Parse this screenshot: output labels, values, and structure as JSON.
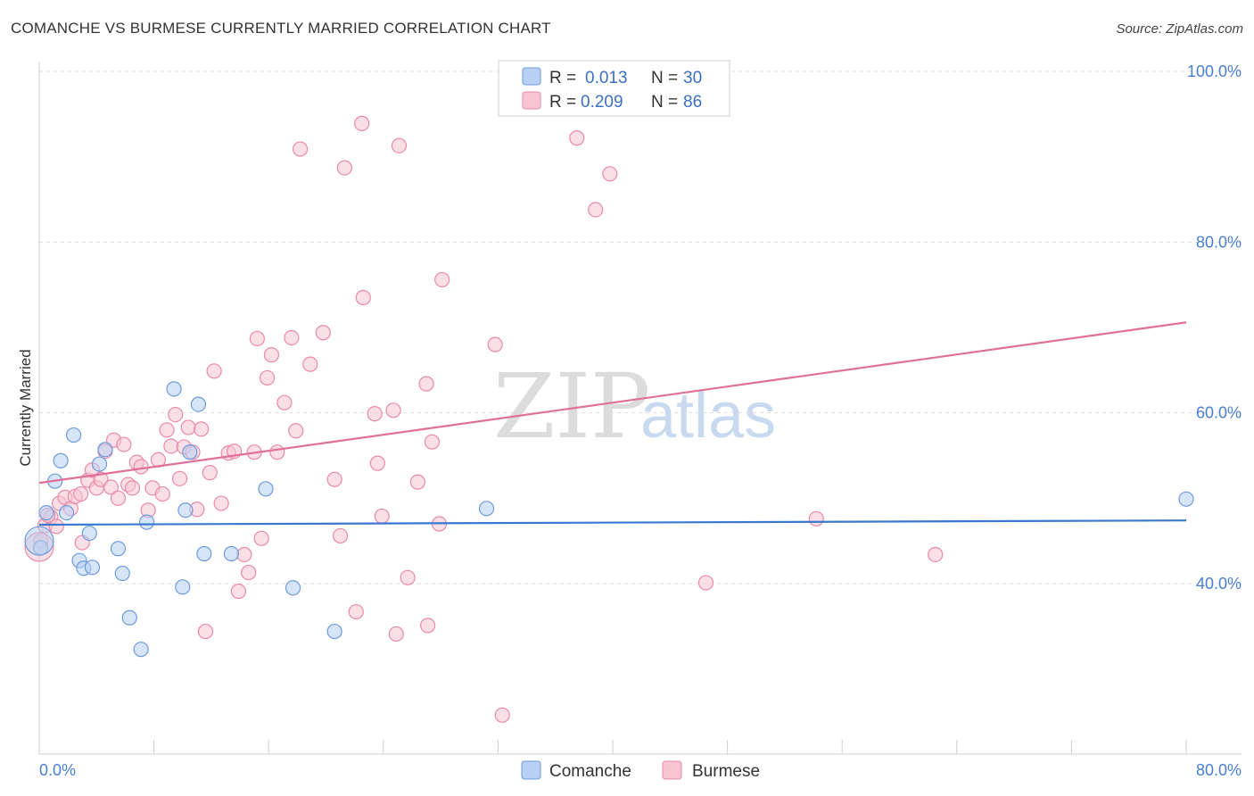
{
  "title": "COMANCHE VS BURMESE CURRENTLY MARRIED CORRELATION CHART",
  "source": "Source: ZipAtlas.com",
  "watermark": {
    "zip": "ZIP",
    "atlas": "atlas"
  },
  "legend": {
    "r_label": "R =",
    "n_label": "N =",
    "rows": [
      {
        "r": "0.013",
        "n": "30"
      },
      {
        "r": "0.209",
        "n": "86"
      }
    ]
  },
  "bottom_legend": [
    "Comanche",
    "Burmese"
  ],
  "chart_data": {
    "type": "scatter",
    "title": "COMANCHE VS BURMESE CURRENTLY MARRIED CORRELATION CHART",
    "xlabel": "",
    "ylabel": "Currently Married",
    "xlim": [
      0,
      80
    ],
    "ylim": [
      20,
      102
    ],
    "x_tick_labels": [
      "0.0%",
      "80.0%"
    ],
    "y_ticks": [
      40,
      60,
      80,
      100
    ],
    "y_tick_labels": [
      "40.0%",
      "60.0%",
      "80.0%",
      "100.0%"
    ],
    "grid": true,
    "legend_position": "top-center",
    "colors": {
      "comanche_fill": "#b7d0f3",
      "comanche_stroke": "#6f9bdc",
      "comanche_line": "#3a78d0",
      "burmese_fill": "#f8c4d4",
      "burmese_stroke": "#e88aa8",
      "burmese_line": "#e0709a"
    },
    "series": [
      {
        "name": "Comanche",
        "trend": {
          "x": [
            0,
            80
          ],
          "y": [
            46.9,
            47.4
          ]
        },
        "points": [
          [
            0.1,
            44.2
          ],
          [
            0.5,
            48.3
          ],
          [
            1.1,
            52.0
          ],
          [
            1.5,
            54.4
          ],
          [
            1.9,
            48.3
          ],
          [
            2.4,
            57.4
          ],
          [
            2.8,
            42.7
          ],
          [
            3.1,
            41.8
          ],
          [
            3.5,
            45.9
          ],
          [
            3.7,
            41.9
          ],
          [
            4.2,
            54.0
          ],
          [
            4.6,
            55.7
          ],
          [
            5.5,
            44.1
          ],
          [
            5.8,
            41.2
          ],
          [
            6.3,
            36.0
          ],
          [
            7.1,
            32.3
          ],
          [
            7.5,
            47.2
          ],
          [
            9.4,
            62.8
          ],
          [
            10.0,
            39.6
          ],
          [
            10.2,
            48.6
          ],
          [
            10.5,
            55.4
          ],
          [
            11.1,
            61.0
          ],
          [
            11.5,
            43.5
          ],
          [
            13.4,
            43.5
          ],
          [
            15.8,
            51.1
          ],
          [
            17.7,
            39.5
          ],
          [
            20.6,
            34.4
          ],
          [
            31.2,
            48.8
          ],
          [
            80.0,
            49.9
          ],
          [
            0.0,
            45.0
          ]
        ]
      },
      {
        "name": "Burmese",
        "trend": {
          "x": [
            0,
            80
          ],
          "y": [
            51.8,
            70.6
          ]
        },
        "points": [
          [
            0.1,
            45.0
          ],
          [
            0.4,
            46.8
          ],
          [
            0.8,
            47.8
          ],
          [
            1.2,
            46.7
          ],
          [
            1.4,
            49.4
          ],
          [
            1.8,
            50.1
          ],
          [
            2.2,
            48.8
          ],
          [
            2.5,
            50.2
          ],
          [
            2.9,
            50.5
          ],
          [
            3.0,
            44.8
          ],
          [
            3.4,
            52.1
          ],
          [
            3.7,
            53.3
          ],
          [
            4.0,
            51.2
          ],
          [
            4.3,
            52.2
          ],
          [
            4.6,
            55.5
          ],
          [
            5.0,
            51.3
          ],
          [
            5.2,
            56.8
          ],
          [
            5.5,
            50.0
          ],
          [
            5.9,
            56.3
          ],
          [
            6.2,
            51.6
          ],
          [
            6.5,
            51.2
          ],
          [
            6.8,
            54.2
          ],
          [
            7.1,
            53.7
          ],
          [
            7.6,
            48.6
          ],
          [
            7.9,
            51.2
          ],
          [
            8.3,
            54.5
          ],
          [
            8.6,
            50.5
          ],
          [
            8.9,
            58.0
          ],
          [
            9.2,
            56.1
          ],
          [
            9.5,
            59.8
          ],
          [
            9.8,
            52.3
          ],
          [
            10.1,
            56.0
          ],
          [
            10.4,
            58.3
          ],
          [
            10.7,
            55.4
          ],
          [
            11.0,
            48.7
          ],
          [
            11.3,
            58.1
          ],
          [
            11.6,
            34.4
          ],
          [
            11.9,
            53.0
          ],
          [
            12.2,
            64.9
          ],
          [
            12.7,
            49.4
          ],
          [
            13.2,
            55.3
          ],
          [
            13.6,
            55.5
          ],
          [
            13.9,
            39.1
          ],
          [
            14.3,
            43.4
          ],
          [
            14.6,
            41.3
          ],
          [
            15.0,
            55.4
          ],
          [
            15.2,
            68.7
          ],
          [
            15.5,
            45.3
          ],
          [
            15.9,
            64.1
          ],
          [
            16.2,
            66.8
          ],
          [
            16.6,
            55.4
          ],
          [
            17.1,
            61.2
          ],
          [
            17.6,
            68.8
          ],
          [
            17.9,
            57.9
          ],
          [
            18.2,
            90.9
          ],
          [
            18.9,
            65.7
          ],
          [
            19.8,
            69.4
          ],
          [
            20.6,
            52.2
          ],
          [
            21.0,
            45.6
          ],
          [
            21.3,
            88.7
          ],
          [
            22.1,
            36.7
          ],
          [
            22.5,
            93.9
          ],
          [
            22.6,
            73.5
          ],
          [
            23.4,
            59.9
          ],
          [
            23.6,
            54.1
          ],
          [
            23.9,
            47.9
          ],
          [
            24.7,
            60.3
          ],
          [
            24.9,
            34.1
          ],
          [
            25.1,
            91.3
          ],
          [
            25.7,
            40.7
          ],
          [
            26.4,
            51.9
          ],
          [
            27.0,
            63.4
          ],
          [
            27.1,
            35.1
          ],
          [
            27.4,
            56.6
          ],
          [
            27.9,
            47.0
          ],
          [
            28.1,
            75.6
          ],
          [
            31.8,
            68.0
          ],
          [
            32.3,
            24.6
          ],
          [
            37.5,
            92.2
          ],
          [
            38.8,
            83.8
          ],
          [
            39.8,
            88.0
          ],
          [
            46.5,
            40.1
          ],
          [
            54.2,
            47.6
          ],
          [
            62.5,
            43.4
          ],
          [
            0.0,
            44.3
          ],
          [
            0.6,
            48.0
          ]
        ]
      }
    ]
  }
}
